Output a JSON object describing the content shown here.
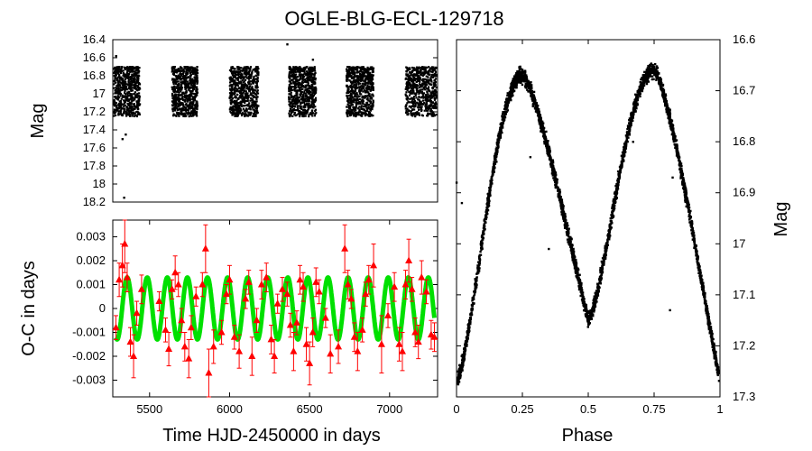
{
  "chart_data": [
    {
      "type": "scatter",
      "panel": "light-curve",
      "title": "OGLE-BLG-ECL-129718",
      "ylabel": "Mag",
      "xlim": [
        5270,
        7300
      ],
      "ylim": [
        18.2,
        16.4
      ],
      "y_inverted": true,
      "y_ticks": [
        "16.4",
        "16.6",
        "16.8",
        "17",
        "17.2",
        "17.4",
        "17.6",
        "17.8",
        "18",
        "18.2"
      ],
      "series": [
        {
          "color": "#000000",
          "observing_seasons": [
            {
              "x_range": [
                5270,
                5440
              ],
              "y_range": [
                16.7,
                17.25
              ]
            },
            {
              "x_range": [
                5640,
                5800
              ],
              "y_range": [
                16.7,
                17.25
              ]
            },
            {
              "x_range": [
                6000,
                6180
              ],
              "y_range": [
                16.7,
                17.25
              ]
            },
            {
              "x_range": [
                6370,
                6540
              ],
              "y_range": [
                16.7,
                17.25
              ]
            },
            {
              "x_range": [
                6730,
                6900
              ],
              "y_range": [
                16.7,
                17.25
              ]
            },
            {
              "x_range": [
                7100,
                7300
              ],
              "y_range": [
                16.7,
                17.25
              ]
            }
          ],
          "outliers": [
            [
              5290,
              16.58
            ],
            [
              5330,
              17.5
            ],
            [
              5350,
              17.45
            ],
            [
              5340,
              18.15
            ],
            [
              6360,
              16.45
            ],
            [
              6520,
              16.62
            ]
          ]
        }
      ]
    },
    {
      "type": "scatter",
      "panel": "o-c",
      "xlabel": "Time HJD-2450000 in days",
      "ylabel": "O-C in days",
      "xlim": [
        5270,
        7300
      ],
      "ylim": [
        -0.0037,
        0.0037
      ],
      "x_ticks": [
        "5500",
        "6000",
        "6500",
        "7000"
      ],
      "y_ticks": [
        "0.003",
        "0.002",
        "0.001",
        "0",
        "-0.001",
        "-0.002",
        "-0.003"
      ],
      "series": [
        {
          "role": "observed O-C",
          "marker": "triangle",
          "color": "#ff0000",
          "x": [
            5290,
            5310,
            5330,
            5345,
            5360,
            5380,
            5400,
            5420,
            5450,
            5560,
            5600,
            5620,
            5640,
            5660,
            5680,
            5700,
            5720,
            5745,
            5760,
            5790,
            5830,
            5850,
            5870,
            5900,
            5950,
            5980,
            6000,
            6030,
            6060,
            6100,
            6120,
            6140,
            6170,
            6200,
            6230,
            6260,
            6280,
            6300,
            6330,
            6360,
            6380,
            6400,
            6420,
            6440,
            6460,
            6480,
            6500,
            6520,
            6540,
            6560,
            6600,
            6630,
            6680,
            6720,
            6740,
            6760,
            6780,
            6800,
            6830,
            6850,
            6870,
            6900,
            6950,
            6990,
            7030,
            7060,
            7080,
            7100,
            7120,
            7140,
            7160,
            7180,
            7200,
            7230,
            7260,
            7280
          ],
          "y": [
            -0.0008,
            0.0012,
            0.0018,
            0.0027,
            0.0013,
            -0.0014,
            -0.002,
            -0.0002,
            0.0008,
            0.0003,
            -0.0009,
            -0.0017,
            0.0008,
            0.0015,
            0.001,
            -0.0005,
            -0.0016,
            -0.0021,
            -0.0008,
            0.0005,
            0.001,
            0.0025,
            -0.0027,
            -0.0016,
            -0.001,
            0.0006,
            0.0012,
            -0.0012,
            -0.0018,
            0.0004,
            0.0011,
            -0.002,
            -0.0005,
            0.001,
            0.0013,
            -0.0013,
            -0.002,
            0.0002,
            0.0008,
            0.0006,
            -0.0007,
            -0.0018,
            -0.0006,
            0.0012,
            0.0009,
            -0.0015,
            -0.0023,
            -0.001,
            0.0011,
            0.0007,
            -0.0004,
            -0.0019,
            -0.0016,
            0.0025,
            0.001,
            0.0004,
            -0.0012,
            -0.0018,
            -0.0009,
            0.0006,
            0.0012,
            0.0018,
            -0.0015,
            -0.0003,
            0.0009,
            -0.0015,
            -0.0018,
            0.001,
            0.002,
            0.0008,
            -0.001,
            -0.0014,
            0.0013,
            0.0007,
            -0.0011,
            -0.0012
          ],
          "yerr": [
            0.0005,
            0.0007,
            0.0009,
            0.0012,
            0.0006,
            0.0006,
            0.0009,
            0.0005,
            0.0006,
            0.0004,
            0.0005,
            0.0007,
            0.0004,
            0.0007,
            0.0005,
            0.0005,
            0.0006,
            0.0008,
            0.0005,
            0.0004,
            0.0005,
            0.001,
            0.001,
            0.0007,
            0.0005,
            0.0004,
            0.0006,
            0.0005,
            0.0007,
            0.0004,
            0.0005,
            0.0008,
            0.0005,
            0.0006,
            0.0006,
            0.0006,
            0.0007,
            0.0004,
            0.0005,
            0.0005,
            0.0005,
            0.0008,
            0.0005,
            0.0006,
            0.0006,
            0.0007,
            0.0009,
            0.0006,
            0.0006,
            0.0005,
            0.0004,
            0.0008,
            0.0007,
            0.001,
            0.0006,
            0.0004,
            0.0006,
            0.0008,
            0.0005,
            0.0005,
            0.0006,
            0.0009,
            0.0012,
            0.0005,
            0.0006,
            0.0007,
            0.0008,
            0.0006,
            0.0009,
            0.0005,
            0.0006,
            0.0007,
            0.0007,
            0.0005,
            0.0006,
            0.0006
          ]
        },
        {
          "role": "sinusoidal fit",
          "color": "#00e000",
          "amplitude": 0.0013,
          "period_days": 125.5,
          "reference_epoch": 5360,
          "x_range": [
            5290,
            7280
          ]
        }
      ]
    },
    {
      "type": "scatter",
      "panel": "phased-light-curve",
      "xlabel": "Phase",
      "ylabel": "Mag",
      "xlim": [
        0,
        1
      ],
      "ylim": [
        17.3,
        16.6
      ],
      "y_inverted": true,
      "x_ticks": [
        "0",
        "0.25",
        "0.5",
        "0.75",
        "1"
      ],
      "y_ticks": [
        "16.6",
        "16.7",
        "16.8",
        "16.9",
        "17",
        "17.1",
        "17.2",
        "17.3"
      ],
      "series": [
        {
          "color": "#000000",
          "maxima": [
            [
              0.25,
              16.67
            ],
            [
              0.75,
              16.66
            ]
          ],
          "minima": [
            [
              0.0,
              17.27
            ],
            [
              0.5,
              17.15
            ],
            [
              1.0,
              17.27
            ]
          ],
          "scatter_mag": 0.03,
          "outliers": [
            [
              0.34,
              16.78
            ],
            [
              0.67,
              16.8
            ],
            [
              0.28,
              16.83
            ],
            [
              0.82,
              16.87
            ],
            [
              0.35,
              17.01
            ],
            [
              0.81,
              17.13
            ],
            [
              0.0,
              16.88
            ],
            [
              0.02,
              16.92
            ]
          ]
        }
      ]
    }
  ]
}
